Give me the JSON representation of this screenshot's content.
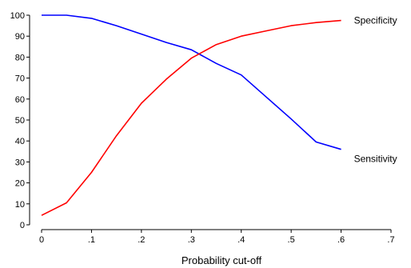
{
  "chart_data": {
    "type": "line",
    "title": "",
    "xlabel": "Probability cut-off",
    "ylabel": "",
    "xlim": [
      0,
      0.7
    ],
    "ylim": [
      0,
      100
    ],
    "x_ticks": [
      0,
      0.1,
      0.2,
      0.3,
      0.4,
      0.5,
      0.6,
      0.7
    ],
    "x_tick_labels": [
      "0",
      ".1",
      ".2",
      ".3",
      ".4",
      ".5",
      ".6",
      ".7"
    ],
    "y_ticks": [
      0,
      10,
      20,
      30,
      40,
      50,
      60,
      70,
      80,
      90,
      100
    ],
    "y_tick_labels": [
      "0",
      "10",
      "20",
      "30",
      "40",
      "50",
      "60",
      "70",
      "80",
      "90",
      "100"
    ],
    "grid": false,
    "legend": "none",
    "series": [
      {
        "name": "Sensitivity",
        "color": "#0000ff",
        "x": [
          0,
          0.05,
          0.1,
          0.15,
          0.2,
          0.25,
          0.3,
          0.35,
          0.4,
          0.45,
          0.5,
          0.55,
          0.6
        ],
        "y": [
          100,
          100,
          98.5,
          95,
          91,
          87,
          83.5,
          77,
          71.5,
          61,
          50.5,
          39.5,
          36
        ]
      },
      {
        "name": "Specificity",
        "color": "#ff0000",
        "x": [
          0,
          0.05,
          0.1,
          0.15,
          0.2,
          0.25,
          0.3,
          0.35,
          0.4,
          0.45,
          0.5,
          0.55,
          0.6
        ],
        "y": [
          4.5,
          10.5,
          25,
          42.5,
          58,
          69.5,
          79.5,
          86,
          90,
          92.5,
          95,
          96.5,
          97.5
        ]
      }
    ]
  }
}
